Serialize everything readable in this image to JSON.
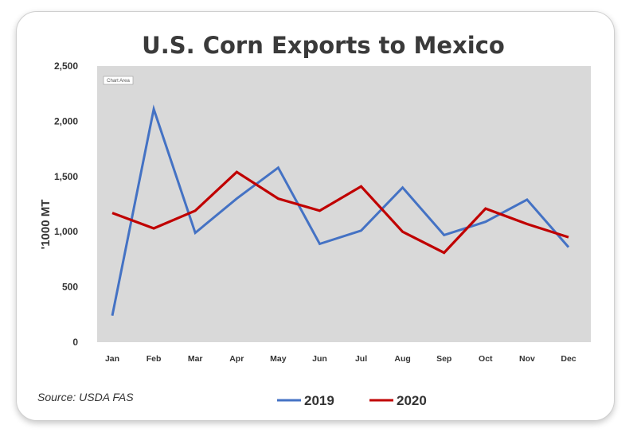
{
  "chart_data": {
    "type": "line",
    "title": "U.S. Corn Exports to Mexico",
    "xlabel": "",
    "ylabel": "'1000 MT",
    "categories": [
      "Jan",
      "Feb",
      "Mar",
      "Apr",
      "May",
      "Jun",
      "Jul",
      "Aug",
      "Sep",
      "Oct",
      "Nov",
      "Dec"
    ],
    "ylim": [
      0,
      2500
    ],
    "yticks": [
      0,
      500,
      1000,
      1500,
      2000,
      2500
    ],
    "ytick_labels": [
      "0",
      "500",
      "1,000",
      "1,500",
      "2,000",
      "2,500"
    ],
    "grid": false,
    "legend_position": "bottom",
    "plot_background": "#d9d9d9",
    "series": [
      {
        "name": "2019",
        "color": "#4472c4",
        "values": [
          240,
          2110,
          990,
          1300,
          1580,
          890,
          1010,
          1400,
          970,
          1090,
          1290,
          860
        ]
      },
      {
        "name": "2020",
        "color": "#c00000",
        "values": [
          1170,
          1030,
          1190,
          1540,
          1300,
          1190,
          1410,
          1000,
          810,
          1210,
          1070,
          950
        ]
      }
    ],
    "annotations": {
      "source": "Source: USDA FAS",
      "chart_area_label": "Chart Area"
    }
  }
}
